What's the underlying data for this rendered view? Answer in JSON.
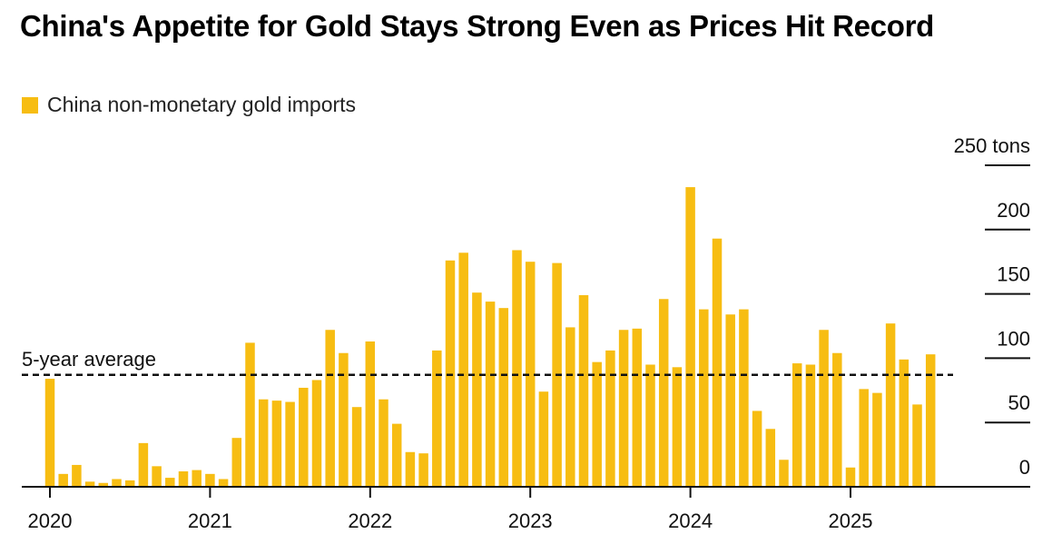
{
  "chart_data": {
    "type": "bar",
    "title": "China's Appetite for Gold Stays Strong Even as Prices Hit Record",
    "legend": [
      {
        "label": "China non-monetary gold imports",
        "color": "#f7bd12"
      }
    ],
    "y_unit_label": "250 tons",
    "ylim": [
      0,
      250
    ],
    "yticks": [
      0,
      50,
      100,
      150,
      200,
      250
    ],
    "ytick_labels": [
      "0",
      "50",
      "100",
      "150",
      "200",
      "250 tons"
    ],
    "xtick_labels": [
      "2020",
      "2021",
      "2022",
      "2023",
      "2024",
      "2025"
    ],
    "start": "2020-01",
    "bar_color": "#f7bd12",
    "reference_line": {
      "label": "5-year average",
      "value": 87
    },
    "values": [
      84,
      10,
      17,
      4,
      3,
      6,
      5,
      34,
      16,
      7,
      12,
      13,
      10,
      6,
      38,
      112,
      68,
      67,
      66,
      77,
      83,
      122,
      104,
      62,
      113,
      68,
      49,
      27,
      26,
      106,
      176,
      182,
      151,
      144,
      139,
      184,
      175,
      74,
      174,
      124,
      149,
      97,
      106,
      122,
      123,
      95,
      146,
      93,
      233,
      138,
      193,
      134,
      138,
      59,
      45,
      21,
      96,
      95,
      122,
      104,
      15,
      76,
      73,
      127,
      99,
      64,
      103
    ]
  }
}
